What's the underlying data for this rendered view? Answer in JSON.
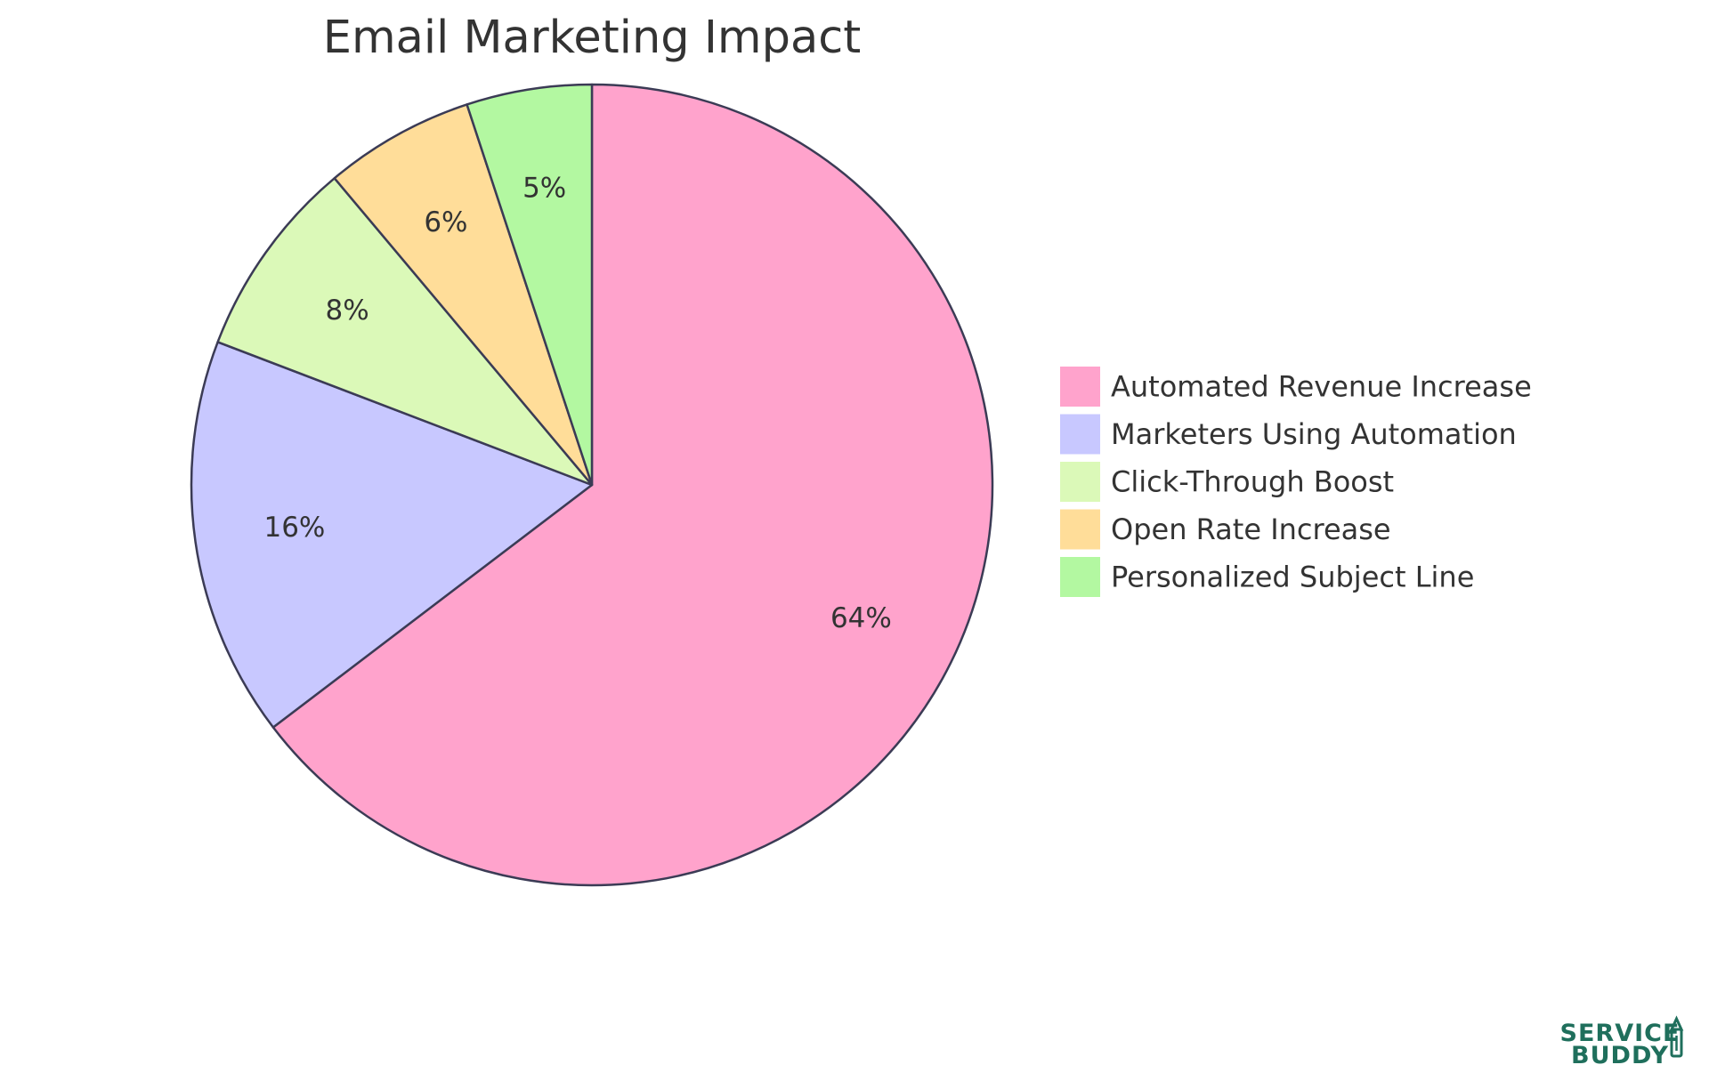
{
  "chart_data": {
    "type": "pie",
    "title": "Email Marketing Impact",
    "slices": [
      {
        "name": "Automated Revenue Increase",
        "value": 64,
        "label": "64%",
        "color": "#ffa3cc"
      },
      {
        "name": "Marketers Using Automation",
        "value": 16,
        "label": "16%",
        "color": "#c8c8ff"
      },
      {
        "name": "Click-Through Boost",
        "value": 8,
        "label": "8%",
        "color": "#dbf9b8"
      },
      {
        "name": "Open Rate Increase",
        "value": 6,
        "label": "6%",
        "color": "#ffdd99"
      },
      {
        "name": "Personalized Subject Line",
        "value": 5,
        "label": "5%",
        "color": "#b3f8a1"
      }
    ],
    "legend_position": "right",
    "start_angle": "12 o'clock",
    "direction": "clockwise",
    "stroke_color": "#3b3b55"
  },
  "logo": {
    "line1": "SERVICE",
    "line2": "BUDDY",
    "color": "#1f6f5c"
  }
}
